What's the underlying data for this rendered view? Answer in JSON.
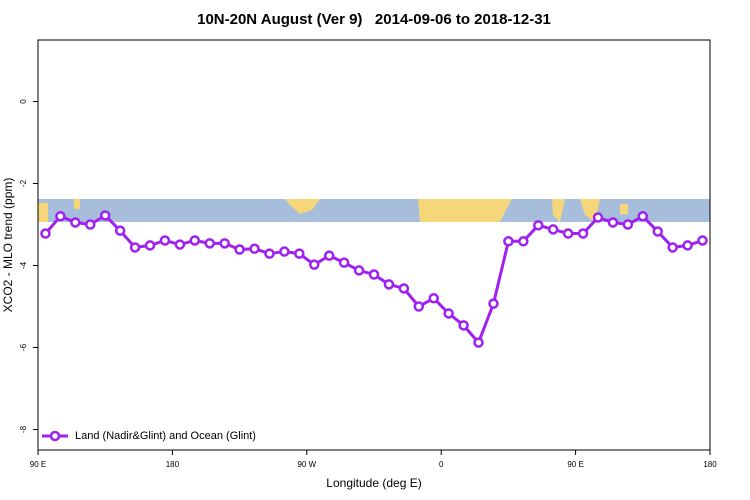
{
  "chart_data": {
    "type": "line",
    "title": "10N-20N August (Ver 9)   2014-09-06 to 2018-12-31",
    "xlabel": "Longitude (deg E)",
    "ylabel": "XCO2 - MLO trend (ppm)",
    "xlim": [
      90,
      540
    ],
    "xticks": [
      {
        "value": 90,
        "label": "90 E"
      },
      180,
      {
        "value": 270,
        "label": "90 W"
      },
      {
        "value": 360,
        "label": "0"
      },
      {
        "value": 450,
        "label": "90 E"
      },
      {
        "value": 540,
        "label": "180"
      }
    ],
    "ylim": [
      -8.5,
      1.5
    ],
    "yticks": [
      0,
      -2,
      -4,
      -6,
      -8
    ],
    "legend": "bottom-left",
    "x": [
      95,
      105,
      115,
      125,
      135,
      145,
      155,
      165,
      175,
      185,
      195,
      205,
      215,
      225,
      235,
      245,
      255,
      265,
      275,
      285,
      295,
      305,
      315,
      325,
      335,
      345,
      355,
      365,
      375,
      385,
      395,
      405,
      415,
      425,
      435,
      445,
      455,
      465,
      475,
      485,
      495,
      505,
      515,
      525,
      535
    ],
    "series": [
      {
        "name": "Land (Nadir&Glint) and Ocean (Glint)",
        "color": "#a020f0",
        "values": [
          -3.22,
          -2.8,
          -2.95,
          -3.0,
          -2.78,
          -3.15,
          -3.56,
          -3.51,
          -3.39,
          -3.49,
          -3.39,
          -3.46,
          -3.46,
          -3.61,
          -3.59,
          -3.71,
          -3.66,
          -3.71,
          -3.98,
          -3.76,
          -3.93,
          -4.12,
          -4.22,
          -4.46,
          -4.56,
          -5.0,
          -4.8,
          -5.17,
          -5.46,
          -5.88,
          -4.93,
          -3.41,
          -3.41,
          -3.02,
          -3.12,
          -3.22,
          -3.22,
          -2.83,
          -2.95,
          -3.0,
          -2.8,
          -3.17,
          -3.56,
          -3.51,
          -3.39
        ]
      }
    ]
  }
}
